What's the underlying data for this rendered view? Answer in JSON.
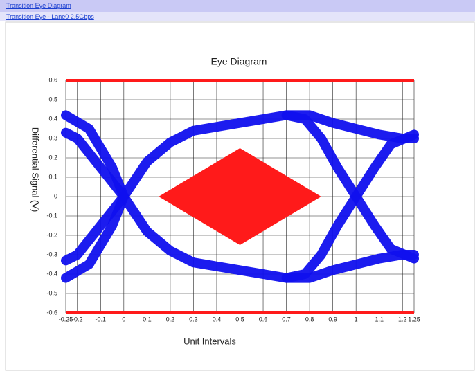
{
  "header": {
    "link": "Transition Eye Diagram",
    "sublink": "Transition Eye - Lane0 2.5Gbps"
  },
  "chart_data": {
    "type": "line",
    "title": "Eye Diagram",
    "x_label": "Unit Intervals",
    "y_label": "Differential Signal (V)",
    "xlim": [
      -0.25,
      1.25
    ],
    "ylim": [
      -0.6,
      0.6
    ],
    "xticks": [
      -0.25,
      -0.2,
      -0.1,
      0,
      0.1,
      0.2,
      0.3,
      0.4,
      0.5,
      0.6,
      0.7,
      0.8,
      0.9,
      1,
      1.1,
      1.2,
      1.25
    ],
    "yticks": [
      0.6,
      0.5,
      0.4,
      0.3,
      0.2,
      0.1,
      0,
      -0.1,
      -0.2,
      -0.3,
      -0.4,
      -0.5,
      -0.6
    ],
    "grid": true,
    "series": [
      {
        "color": "#1010ee",
        "x": [
          -0.25,
          -0.15,
          -0.05,
          0,
          0.1,
          0.2,
          0.3,
          0.5,
          0.7,
          0.78,
          0.85,
          0.92,
          1,
          1.08,
          1.15,
          1.25
        ],
        "values": [
          -0.42,
          -0.35,
          -0.15,
          0,
          0.18,
          0.28,
          0.34,
          0.38,
          0.42,
          0.4,
          0.3,
          0.15,
          0,
          -0.15,
          -0.27,
          -0.32
        ]
      },
      {
        "color": "#1010ee",
        "x": [
          -0.25,
          -0.15,
          -0.05,
          0,
          0.1,
          0.2,
          0.3,
          0.5,
          0.7,
          0.78,
          0.85,
          0.92,
          1,
          1.08,
          1.15,
          1.25
        ],
        "values": [
          0.42,
          0.35,
          0.15,
          0,
          -0.18,
          -0.28,
          -0.34,
          -0.38,
          -0.42,
          -0.4,
          -0.3,
          -0.15,
          0,
          0.15,
          0.27,
          0.32
        ]
      },
      {
        "color": "#1010ee",
        "x": [
          0.7,
          0.8,
          0.9,
          1,
          1.1,
          1.2,
          1.25
        ],
        "values": [
          0.42,
          0.42,
          0.38,
          0.35,
          0.32,
          0.3,
          0.3
        ]
      },
      {
        "color": "#1010ee",
        "x": [
          0.7,
          0.8,
          0.9,
          1,
          1.1,
          1.2,
          1.25
        ],
        "values": [
          -0.42,
          -0.42,
          -0.38,
          -0.35,
          -0.32,
          -0.3,
          -0.3
        ]
      },
      {
        "color": "#1010ee",
        "x": [
          -0.25,
          -0.2,
          -0.1,
          0
        ],
        "values": [
          0.33,
          0.3,
          0.15,
          0
        ]
      },
      {
        "color": "#1010ee",
        "x": [
          -0.25,
          -0.2,
          -0.1,
          0
        ],
        "values": [
          -0.33,
          -0.3,
          -0.15,
          0
        ]
      }
    ],
    "mask": {
      "color": "#ff1a1a",
      "x": [
        0.15,
        0.5,
        0.85,
        0.5
      ],
      "y": [
        0,
        0.25,
        0,
        -0.25
      ]
    },
    "limit_lines": [
      {
        "y": 0.6,
        "color": "#ff1a1a"
      },
      {
        "y": -0.6,
        "color": "#ff1a1a"
      }
    ]
  }
}
